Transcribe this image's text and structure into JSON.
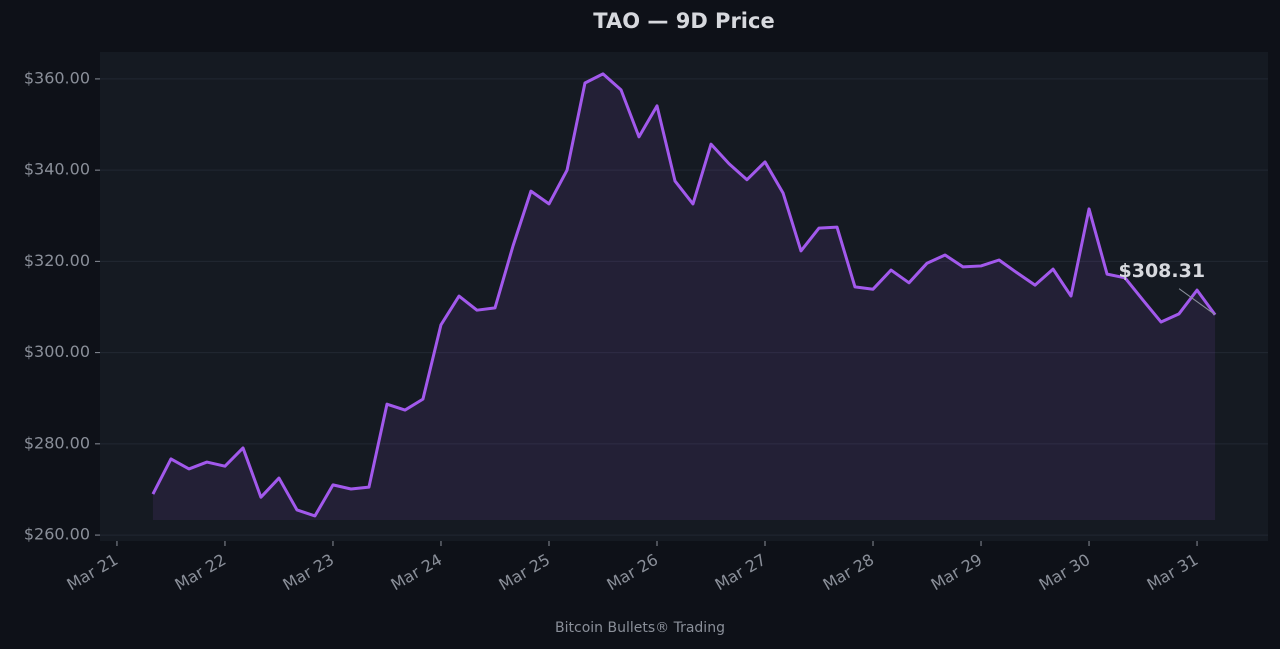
{
  "chart_data": {
    "type": "line",
    "title": "TAO — 9D Price",
    "footer": "Bitcoin Bullets® Trading",
    "x": [
      0.333,
      0.5,
      0.667,
      0.833,
      1,
      1.167,
      1.333,
      1.5,
      1.667,
      1.833,
      2,
      2.167,
      2.333,
      2.5,
      2.667,
      2.833,
      3,
      3.167,
      3.333,
      3.5,
      3.667,
      3.833,
      4,
      4.167,
      4.333,
      4.5,
      4.667,
      4.833,
      5,
      5.167,
      5.333,
      5.5,
      5.667,
      5.833,
      6,
      6.167,
      6.333,
      6.5,
      6.667,
      6.833,
      7,
      7.167,
      7.333,
      7.5,
      7.667,
      7.833,
      8,
      8.167,
      8.333,
      8.5,
      8.667,
      8.833,
      9,
      9.167,
      9.333,
      9.5,
      9.667,
      9.833,
      10,
      10.167
    ],
    "series": [
      {
        "name": "TAO",
        "color": "#a259ec",
        "values": [
          269.0,
          276.7,
          274.5,
          276.0,
          275.1,
          279.1,
          268.3,
          272.5,
          265.5,
          264.2,
          271.0,
          270.1,
          270.5,
          288.7,
          287.4,
          289.8,
          306.1,
          312.4,
          309.3,
          309.8,
          323.4,
          335.4,
          332.6,
          340.0,
          359.1,
          361.1,
          357.6,
          347.3,
          354.1,
          337.6,
          332.6,
          345.7,
          341.4,
          337.9,
          341.8,
          335.0,
          322.3,
          327.3,
          327.5,
          314.4,
          313.9,
          318.1,
          315.3,
          319.6,
          321.4,
          318.8,
          319.0,
          320.3,
          317.5,
          314.8,
          318.3,
          312.4,
          331.5,
          317.2,
          316.4,
          311.5,
          306.7,
          308.5,
          313.7,
          308.31
        ]
      }
    ],
    "annotation": "$308.31",
    "xlim": [
      -0.157,
      10.657
    ],
    "xticks": [
      {
        "value": 0,
        "label": "Mar 21"
      },
      {
        "value": 1,
        "label": "Mar 22"
      },
      {
        "value": 2,
        "label": "Mar 23"
      },
      {
        "value": 3,
        "label": "Mar 24"
      },
      {
        "value": 4,
        "label": "Mar 25"
      },
      {
        "value": 5,
        "label": "Mar 26"
      },
      {
        "value": 6,
        "label": "Mar 27"
      },
      {
        "value": 7,
        "label": "Mar 28"
      },
      {
        "value": 8,
        "label": "Mar 29"
      },
      {
        "value": 9,
        "label": "Mar 30"
      },
      {
        "value": 10,
        "label": "Mar 31"
      }
    ],
    "ylim": [
      258.7,
      365.9
    ],
    "yticks": [
      {
        "value": 260,
        "label": "$260.00"
      },
      {
        "value": 280,
        "label": "$280.00"
      },
      {
        "value": 300,
        "label": "$300.00"
      },
      {
        "value": 320,
        "label": "$320.00"
      },
      {
        "value": 340,
        "label": "$340.00"
      },
      {
        "value": 360,
        "label": "$360.00"
      }
    ],
    "grid": true
  }
}
